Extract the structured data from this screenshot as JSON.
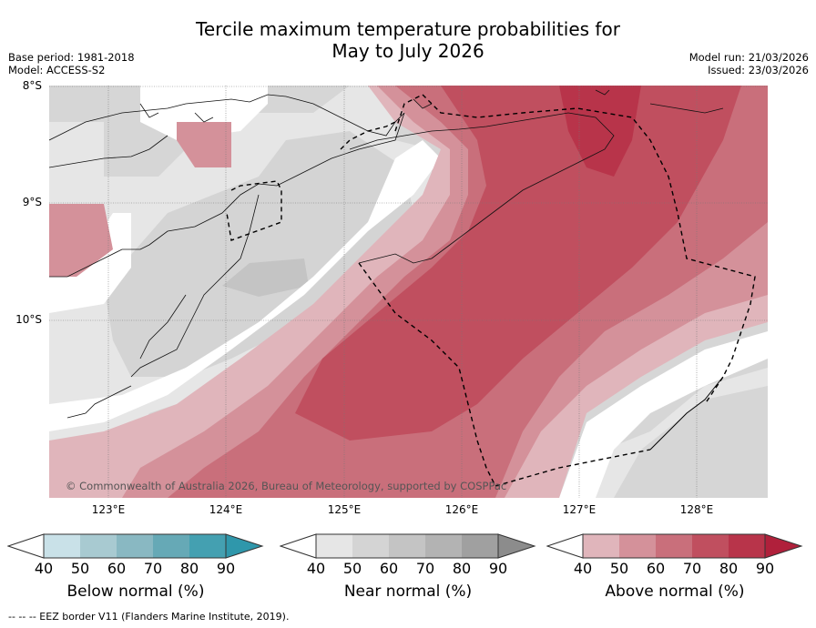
{
  "title": {
    "line1": "Tercile maximum temperature probabilities for",
    "line2": "May to July 2026"
  },
  "meta": {
    "base_period": "Base period: 1981-2018",
    "model": "Model: ACCESS-S2",
    "model_run": "Model run: 21/03/2026",
    "issued": "Issued: 23/03/2026"
  },
  "axes": {
    "lat_labels": [
      "8°S",
      "9°S",
      "10°S"
    ],
    "lon_labels": [
      "123°E",
      "124°E",
      "125°E",
      "126°E",
      "127°E",
      "128°E"
    ]
  },
  "copyright": "© Commonwealth of Australia 2026, Bureau of Meteorology, supported by COSPPac",
  "legend": {
    "below": {
      "title": "Below normal (%)",
      "ticks": [
        "40",
        "50",
        "60",
        "70",
        "80",
        "90"
      ],
      "colors": [
        "#c9e1e8",
        "#a8cad1",
        "#89b8c2",
        "#66a9b6",
        "#44a0b1",
        "#2f97ab"
      ]
    },
    "near": {
      "title": "Near normal (%)",
      "ticks": [
        "40",
        "50",
        "60",
        "70",
        "80",
        "90"
      ],
      "colors": [
        "#e6e6e6",
        "#d4d4d4",
        "#c4c4c4",
        "#b3b3b3",
        "#a0a0a0",
        "#8c8c8c"
      ]
    },
    "above": {
      "title": "Above normal (%)",
      "ticks": [
        "40",
        "50",
        "60",
        "70",
        "80",
        "90"
      ],
      "colors": [
        "#e0b5bb",
        "#d4919a",
        "#c96f7b",
        "#c04f5f",
        "#b8344a",
        "#b0203b"
      ]
    }
  },
  "footnote": "-- --  -- EEZ border V11 (Flanders Marine Institute, 2019)."
}
